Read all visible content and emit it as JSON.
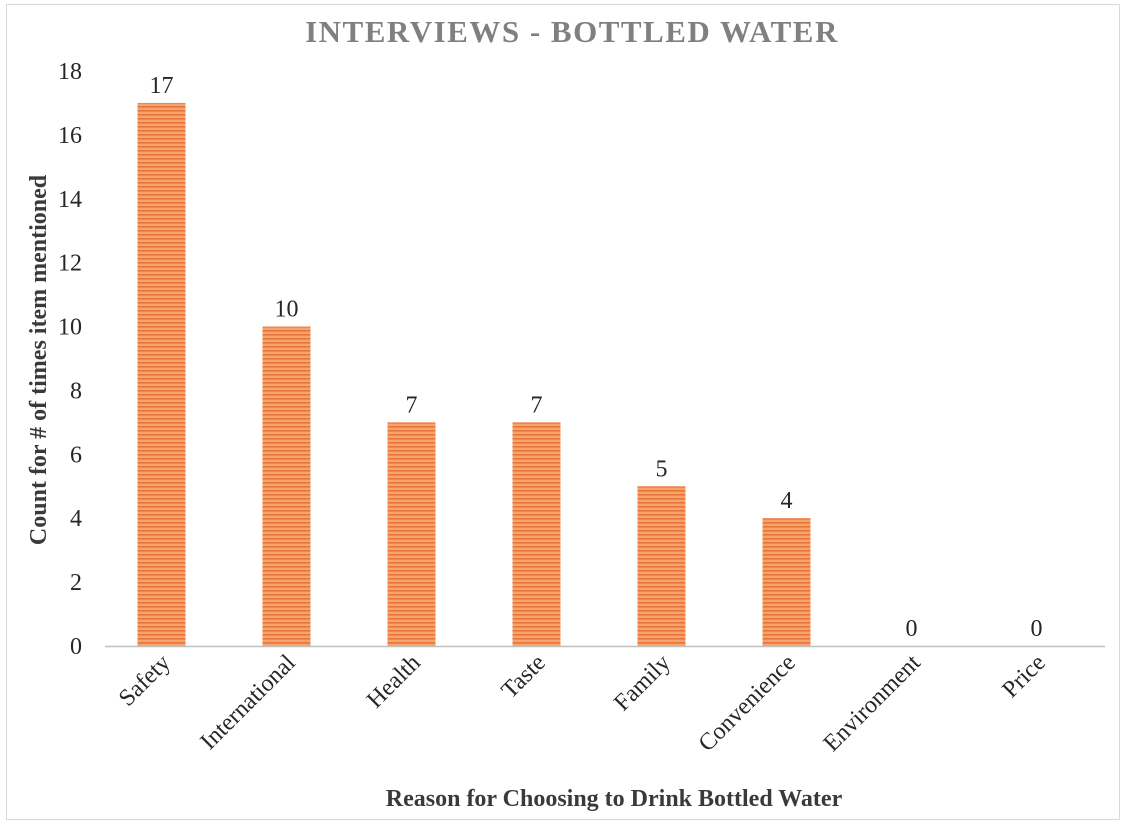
{
  "chart_data": {
    "type": "bar",
    "title": "INTERVIEWS - BOTTLED WATER",
    "xlabel": "Reason for Choosing to Drink Bottled Water",
    "ylabel": "Count for # of times item mentioned",
    "categories": [
      "Safety",
      "International",
      "Health",
      "Taste",
      "Family",
      "Convenience",
      "Environment",
      "Price"
    ],
    "values": [
      17,
      10,
      7,
      7,
      5,
      4,
      0,
      0
    ],
    "ylim": [
      0,
      18
    ],
    "yticks": [
      0,
      2,
      4,
      6,
      8,
      10,
      12,
      14,
      16,
      18
    ],
    "grid": false,
    "legend": "none",
    "bar_color": "#f4a46c",
    "bar_stripe_color": "#e8763a",
    "axis_color": "#bfbfbf"
  }
}
